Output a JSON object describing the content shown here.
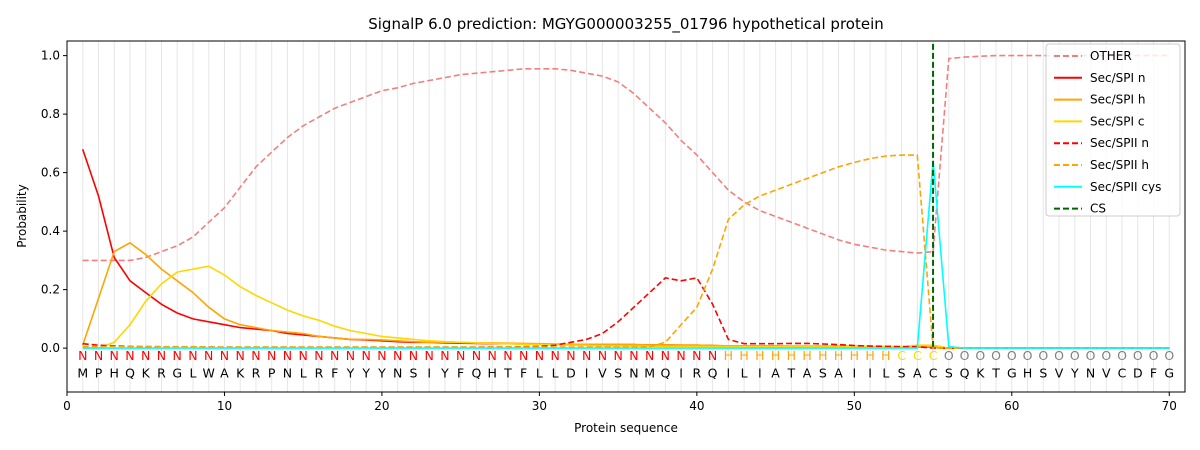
{
  "chart_data": {
    "type": "line",
    "title": "SignalP 6.0 prediction: MGYG000003255_01796 hypothetical protein",
    "xlabel": "Protein sequence",
    "ylabel": "Probability",
    "xlim": [
      0,
      71
    ],
    "ylim": [
      -0.15,
      1.05
    ],
    "x_ticks": [
      0,
      10,
      20,
      30,
      40,
      50,
      60,
      70
    ],
    "y_ticks": [
      0.0,
      0.2,
      0.4,
      0.6,
      0.8,
      1.0
    ],
    "x_tick_labels": [
      "0",
      "10",
      "20",
      "30",
      "40",
      "50",
      "60",
      "70"
    ],
    "y_tick_labels": [
      "0.0",
      "0.2",
      "0.4",
      "0.6",
      "0.8",
      "1.0"
    ],
    "grid": "vertical lines at each residue",
    "legend_position": "top-right",
    "sequence": [
      "M",
      "P",
      "H",
      "Q",
      "K",
      "R",
      "G",
      "L",
      "W",
      "A",
      "K",
      "R",
      "P",
      "N",
      "L",
      "R",
      "F",
      "Y",
      "Y",
      "Y",
      "N",
      "S",
      "I",
      "Y",
      "F",
      "Q",
      "H",
      "T",
      "F",
      "L",
      "L",
      "D",
      "I",
      "V",
      "S",
      "N",
      "M",
      "Q",
      "I",
      "R",
      "Q",
      "I",
      "L",
      "I",
      "A",
      "T",
      "A",
      "S",
      "A",
      "I",
      "I",
      "L",
      "S",
      "A",
      "C",
      "S",
      "Q",
      "K",
      "T",
      "G",
      "H",
      "S",
      "V",
      "Y",
      "N",
      "V",
      "C",
      "D",
      "F",
      "G"
    ],
    "region_labels": [
      "N",
      "N",
      "N",
      "N",
      "N",
      "N",
      "N",
      "N",
      "N",
      "N",
      "N",
      "N",
      "N",
      "N",
      "N",
      "N",
      "N",
      "N",
      "N",
      "N",
      "N",
      "N",
      "N",
      "N",
      "N",
      "N",
      "N",
      "N",
      "N",
      "N",
      "N",
      "N",
      "N",
      "N",
      "N",
      "N",
      "N",
      "N",
      "N",
      "N",
      "N",
      "H",
      "H",
      "H",
      "H",
      "H",
      "H",
      "H",
      "H",
      "H",
      "H",
      "H",
      "C",
      "C",
      "C",
      "O",
      "O",
      "O",
      "O",
      "O",
      "O",
      "O",
      "O",
      "O",
      "O",
      "O",
      "O",
      "O",
      "O",
      "O"
    ],
    "region_colors": {
      "N": "#ff0000",
      "H": "#ffa500",
      "C": "#ffd700",
      "O": "#808080"
    },
    "cleavage_site": 55,
    "series": [
      {
        "name": "OTHER",
        "color": "#f08080",
        "dash": "dashed",
        "values": [
          0.3,
          0.3,
          0.3,
          0.3,
          0.31,
          0.33,
          0.35,
          0.38,
          0.43,
          0.48,
          0.55,
          0.62,
          0.67,
          0.72,
          0.76,
          0.79,
          0.82,
          0.84,
          0.86,
          0.88,
          0.89,
          0.905,
          0.915,
          0.925,
          0.935,
          0.94,
          0.945,
          0.95,
          0.955,
          0.955,
          0.955,
          0.95,
          0.94,
          0.93,
          0.91,
          0.87,
          0.82,
          0.77,
          0.71,
          0.66,
          0.6,
          0.54,
          0.5,
          0.47,
          0.45,
          0.43,
          0.41,
          0.39,
          0.37,
          0.355,
          0.345,
          0.335,
          0.33,
          0.325,
          0.33,
          0.99,
          0.995,
          0.998,
          1.0,
          1.0,
          1.0,
          1.0,
          1.0,
          1.0,
          1.0,
          1.0,
          1.0,
          1.0,
          1.0,
          1.0
        ]
      },
      {
        "name": "Sec/SPI n",
        "color": "#ff0000",
        "dash": "solid",
        "values": [
          0.68,
          0.52,
          0.31,
          0.23,
          0.19,
          0.15,
          0.12,
          0.1,
          0.09,
          0.08,
          0.07,
          0.065,
          0.06,
          0.05,
          0.045,
          0.04,
          0.035,
          0.03,
          0.028,
          0.025,
          0.022,
          0.02,
          0.02,
          0.018,
          0.017,
          0.016,
          0.015,
          0.015,
          0.014,
          0.013,
          0.013,
          0.012,
          0.012,
          0.012,
          0.012,
          0.012,
          0.011,
          0.011,
          0.01,
          0.01,
          0.009,
          0.007,
          0.005,
          0.005,
          0.005,
          0.005,
          0.004,
          0.004,
          0.004,
          0.004,
          0.004,
          0.004,
          0.004,
          0.004,
          0.003,
          0.0,
          0.0,
          0.0,
          0.0,
          0.0,
          0.0,
          0.0,
          0.0,
          0.0,
          0.0,
          0.0,
          0.0,
          0.0,
          0.0,
          0.0
        ]
      },
      {
        "name": "Sec/SPI h",
        "color": "#ffa500",
        "dash": "solid",
        "values": [
          0.01,
          0.17,
          0.33,
          0.36,
          0.32,
          0.27,
          0.23,
          0.19,
          0.14,
          0.1,
          0.08,
          0.07,
          0.06,
          0.055,
          0.05,
          0.04,
          0.035,
          0.03,
          0.03,
          0.028,
          0.025,
          0.022,
          0.02,
          0.02,
          0.02,
          0.018,
          0.018,
          0.017,
          0.016,
          0.015,
          0.014,
          0.013,
          0.013,
          0.012,
          0.012,
          0.012,
          0.011,
          0.011,
          0.01,
          0.01,
          0.009,
          0.008,
          0.008,
          0.008,
          0.008,
          0.007,
          0.007,
          0.007,
          0.007,
          0.007,
          0.006,
          0.006,
          0.005,
          0.005,
          0.004,
          0.0,
          0.0,
          0.0,
          0.0,
          0.0,
          0.0,
          0.0,
          0.0,
          0.0,
          0.0,
          0.0,
          0.0,
          0.0,
          0.0,
          0.0
        ]
      },
      {
        "name": "Sec/SPI c",
        "color": "#ffd700",
        "dash": "solid",
        "values": [
          0.0,
          0.0,
          0.02,
          0.08,
          0.16,
          0.22,
          0.26,
          0.27,
          0.28,
          0.25,
          0.21,
          0.18,
          0.155,
          0.13,
          0.11,
          0.095,
          0.075,
          0.06,
          0.05,
          0.04,
          0.035,
          0.03,
          0.025,
          0.022,
          0.02,
          0.018,
          0.016,
          0.015,
          0.013,
          0.012,
          0.011,
          0.01,
          0.009,
          0.008,
          0.008,
          0.007,
          0.007,
          0.006,
          0.006,
          0.006,
          0.005,
          0.005,
          0.005,
          0.005,
          0.005,
          0.005,
          0.005,
          0.005,
          0.005,
          0.005,
          0.005,
          0.005,
          0.005,
          0.01,
          0.01,
          0.0,
          0.0,
          0.0,
          0.0,
          0.0,
          0.0,
          0.0,
          0.0,
          0.0,
          0.0,
          0.0,
          0.0,
          0.0,
          0.0,
          0.0
        ]
      },
      {
        "name": "Sec/SPII n",
        "color": "#ff0000",
        "dash": "dashed",
        "values": [
          0.015,
          0.01,
          0.008,
          0.006,
          0.005,
          0.005,
          0.004,
          0.004,
          0.004,
          0.003,
          0.003,
          0.003,
          0.003,
          0.003,
          0.003,
          0.003,
          0.003,
          0.003,
          0.003,
          0.003,
          0.003,
          0.003,
          0.003,
          0.003,
          0.003,
          0.003,
          0.004,
          0.004,
          0.005,
          0.006,
          0.01,
          0.02,
          0.03,
          0.05,
          0.09,
          0.14,
          0.19,
          0.24,
          0.23,
          0.24,
          0.15,
          0.03,
          0.015,
          0.015,
          0.015,
          0.016,
          0.016,
          0.014,
          0.012,
          0.009,
          0.007,
          0.006,
          0.005,
          0.005,
          0.0,
          0.0,
          0.0,
          0.0,
          0.0,
          0.0,
          0.0,
          0.0,
          0.0,
          0.0,
          0.0,
          0.0,
          0.0,
          0.0,
          0.0,
          0.0
        ]
      },
      {
        "name": "Sec/SPII h",
        "color": "#ffa500",
        "dash": "dashed",
        "values": [
          0.005,
          0.005,
          0.006,
          0.006,
          0.006,
          0.005,
          0.005,
          0.005,
          0.004,
          0.004,
          0.004,
          0.004,
          0.004,
          0.004,
          0.004,
          0.004,
          0.004,
          0.004,
          0.004,
          0.004,
          0.004,
          0.004,
          0.004,
          0.004,
          0.004,
          0.004,
          0.004,
          0.004,
          0.004,
          0.004,
          0.004,
          0.004,
          0.004,
          0.004,
          0.004,
          0.004,
          0.005,
          0.02,
          0.08,
          0.14,
          0.27,
          0.44,
          0.49,
          0.52,
          0.54,
          0.56,
          0.58,
          0.6,
          0.62,
          0.635,
          0.648,
          0.657,
          0.66,
          0.66,
          0.0,
          0.0,
          0.0,
          0.0,
          0.0,
          0.0,
          0.0,
          0.0,
          0.0,
          0.0,
          0.0,
          0.0,
          0.0,
          0.0,
          0.0,
          0.0
        ]
      },
      {
        "name": "Sec/SPII cys",
        "color": "#00ffff",
        "dash": "solid",
        "values": [
          0.0,
          0.0,
          0.0,
          0.0,
          0.0,
          0.0,
          0.0,
          0.0,
          0.0,
          0.0,
          0.0,
          0.0,
          0.0,
          0.0,
          0.0,
          0.0,
          0.0,
          0.0,
          0.0,
          0.0,
          0.0,
          0.0,
          0.0,
          0.0,
          0.0,
          0.0,
          0.0,
          0.0,
          0.0,
          0.0,
          0.0,
          0.0,
          0.0,
          0.0,
          0.0,
          0.0,
          0.0,
          0.0,
          0.0,
          0.0,
          0.0,
          0.0,
          0.0,
          0.0,
          0.0,
          0.0,
          0.0,
          0.0,
          0.0,
          0.0,
          0.0,
          0.0,
          0.0,
          0.0,
          0.64,
          0.005,
          0.0,
          0.0,
          0.0,
          0.0,
          0.0,
          0.0,
          0.0,
          0.0,
          0.0,
          0.0,
          0.0,
          0.0,
          0.0,
          0.0
        ]
      },
      {
        "name": "CS",
        "color": "#006400",
        "dash": "dashed",
        "vertical_at": 55
      }
    ]
  }
}
